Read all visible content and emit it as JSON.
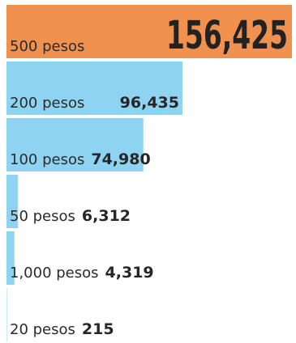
{
  "chart_data": {
    "type": "bar",
    "orientation": "horizontal",
    "categories": [
      "500 pesos",
      "200 pesos",
      "100 pesos",
      "50 pesos",
      "1,000 pesos",
      "20 pesos"
    ],
    "values": [
      156425,
      96435,
      74980,
      6312,
      4319,
      215
    ],
    "value_labels": [
      "156,425",
      "96,435",
      "74,980",
      "6,312",
      "4,319",
      "215"
    ],
    "xlim": [
      0,
      156425
    ],
    "grid": false,
    "legend": "none",
    "colors": {
      "highlight": "#F0914F",
      "default": "#8FD3F2"
    }
  }
}
